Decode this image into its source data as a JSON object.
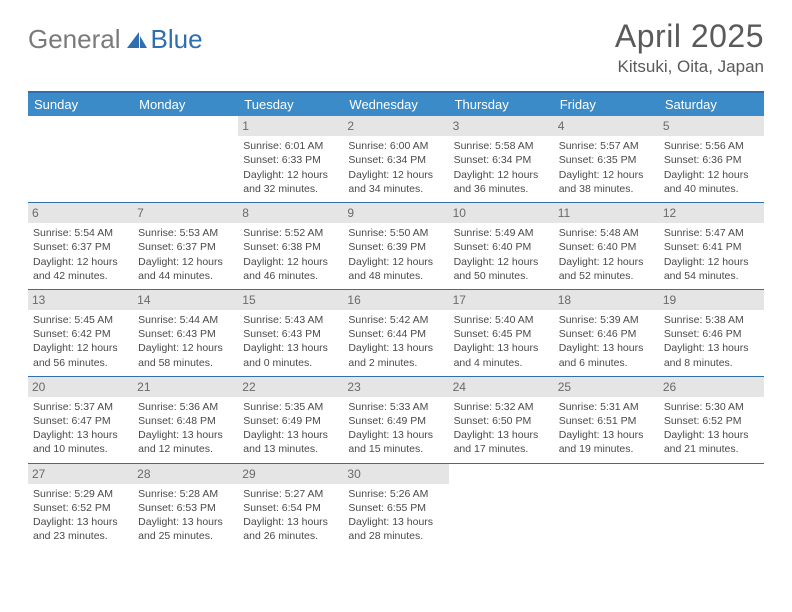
{
  "logo": {
    "gray": "General",
    "blue": "Blue"
  },
  "title": "April 2025",
  "location": "Kitsuki, Oita, Japan",
  "colors": {
    "header_bar": "#3b8bc9",
    "rule": "#2f6fb0",
    "daynum_bg": "#e5e5e5",
    "text": "#4a4a4a",
    "title_text": "#5a5a5a"
  },
  "weekdays": [
    "Sunday",
    "Monday",
    "Tuesday",
    "Wednesday",
    "Thursday",
    "Friday",
    "Saturday"
  ],
  "weeks": [
    [
      null,
      null,
      {
        "n": "1",
        "sr": "Sunrise: 6:01 AM",
        "ss": "Sunset: 6:33 PM",
        "dl": "Daylight: 12 hours and 32 minutes."
      },
      {
        "n": "2",
        "sr": "Sunrise: 6:00 AM",
        "ss": "Sunset: 6:34 PM",
        "dl": "Daylight: 12 hours and 34 minutes."
      },
      {
        "n": "3",
        "sr": "Sunrise: 5:58 AM",
        "ss": "Sunset: 6:34 PM",
        "dl": "Daylight: 12 hours and 36 minutes."
      },
      {
        "n": "4",
        "sr": "Sunrise: 5:57 AM",
        "ss": "Sunset: 6:35 PM",
        "dl": "Daylight: 12 hours and 38 minutes."
      },
      {
        "n": "5",
        "sr": "Sunrise: 5:56 AM",
        "ss": "Sunset: 6:36 PM",
        "dl": "Daylight: 12 hours and 40 minutes."
      }
    ],
    [
      {
        "n": "6",
        "sr": "Sunrise: 5:54 AM",
        "ss": "Sunset: 6:37 PM",
        "dl": "Daylight: 12 hours and 42 minutes."
      },
      {
        "n": "7",
        "sr": "Sunrise: 5:53 AM",
        "ss": "Sunset: 6:37 PM",
        "dl": "Daylight: 12 hours and 44 minutes."
      },
      {
        "n": "8",
        "sr": "Sunrise: 5:52 AM",
        "ss": "Sunset: 6:38 PM",
        "dl": "Daylight: 12 hours and 46 minutes."
      },
      {
        "n": "9",
        "sr": "Sunrise: 5:50 AM",
        "ss": "Sunset: 6:39 PM",
        "dl": "Daylight: 12 hours and 48 minutes."
      },
      {
        "n": "10",
        "sr": "Sunrise: 5:49 AM",
        "ss": "Sunset: 6:40 PM",
        "dl": "Daylight: 12 hours and 50 minutes."
      },
      {
        "n": "11",
        "sr": "Sunrise: 5:48 AM",
        "ss": "Sunset: 6:40 PM",
        "dl": "Daylight: 12 hours and 52 minutes."
      },
      {
        "n": "12",
        "sr": "Sunrise: 5:47 AM",
        "ss": "Sunset: 6:41 PM",
        "dl": "Daylight: 12 hours and 54 minutes."
      }
    ],
    [
      {
        "n": "13",
        "sr": "Sunrise: 5:45 AM",
        "ss": "Sunset: 6:42 PM",
        "dl": "Daylight: 12 hours and 56 minutes."
      },
      {
        "n": "14",
        "sr": "Sunrise: 5:44 AM",
        "ss": "Sunset: 6:43 PM",
        "dl": "Daylight: 12 hours and 58 minutes."
      },
      {
        "n": "15",
        "sr": "Sunrise: 5:43 AM",
        "ss": "Sunset: 6:43 PM",
        "dl": "Daylight: 13 hours and 0 minutes."
      },
      {
        "n": "16",
        "sr": "Sunrise: 5:42 AM",
        "ss": "Sunset: 6:44 PM",
        "dl": "Daylight: 13 hours and 2 minutes."
      },
      {
        "n": "17",
        "sr": "Sunrise: 5:40 AM",
        "ss": "Sunset: 6:45 PM",
        "dl": "Daylight: 13 hours and 4 minutes."
      },
      {
        "n": "18",
        "sr": "Sunrise: 5:39 AM",
        "ss": "Sunset: 6:46 PM",
        "dl": "Daylight: 13 hours and 6 minutes."
      },
      {
        "n": "19",
        "sr": "Sunrise: 5:38 AM",
        "ss": "Sunset: 6:46 PM",
        "dl": "Daylight: 13 hours and 8 minutes."
      }
    ],
    [
      {
        "n": "20",
        "sr": "Sunrise: 5:37 AM",
        "ss": "Sunset: 6:47 PM",
        "dl": "Daylight: 13 hours and 10 minutes."
      },
      {
        "n": "21",
        "sr": "Sunrise: 5:36 AM",
        "ss": "Sunset: 6:48 PM",
        "dl": "Daylight: 13 hours and 12 minutes."
      },
      {
        "n": "22",
        "sr": "Sunrise: 5:35 AM",
        "ss": "Sunset: 6:49 PM",
        "dl": "Daylight: 13 hours and 13 minutes."
      },
      {
        "n": "23",
        "sr": "Sunrise: 5:33 AM",
        "ss": "Sunset: 6:49 PM",
        "dl": "Daylight: 13 hours and 15 minutes."
      },
      {
        "n": "24",
        "sr": "Sunrise: 5:32 AM",
        "ss": "Sunset: 6:50 PM",
        "dl": "Daylight: 13 hours and 17 minutes."
      },
      {
        "n": "25",
        "sr": "Sunrise: 5:31 AM",
        "ss": "Sunset: 6:51 PM",
        "dl": "Daylight: 13 hours and 19 minutes."
      },
      {
        "n": "26",
        "sr": "Sunrise: 5:30 AM",
        "ss": "Sunset: 6:52 PM",
        "dl": "Daylight: 13 hours and 21 minutes."
      }
    ],
    [
      {
        "n": "27",
        "sr": "Sunrise: 5:29 AM",
        "ss": "Sunset: 6:52 PM",
        "dl": "Daylight: 13 hours and 23 minutes."
      },
      {
        "n": "28",
        "sr": "Sunrise: 5:28 AM",
        "ss": "Sunset: 6:53 PM",
        "dl": "Daylight: 13 hours and 25 minutes."
      },
      {
        "n": "29",
        "sr": "Sunrise: 5:27 AM",
        "ss": "Sunset: 6:54 PM",
        "dl": "Daylight: 13 hours and 26 minutes."
      },
      {
        "n": "30",
        "sr": "Sunrise: 5:26 AM",
        "ss": "Sunset: 6:55 PM",
        "dl": "Daylight: 13 hours and 28 minutes."
      },
      null,
      null,
      null
    ]
  ]
}
